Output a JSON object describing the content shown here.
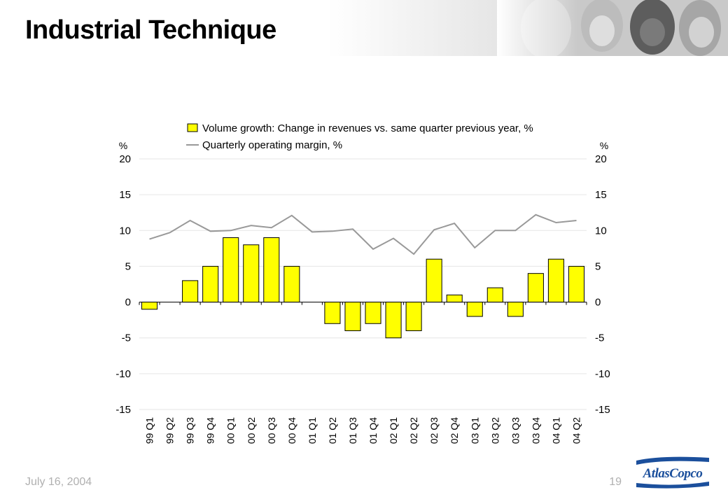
{
  "slide": {
    "title": "Industrial Technique",
    "date": "July 16, 2004",
    "page_number": "19",
    "logo_text": "AtlasCopco"
  },
  "colors": {
    "bar_fill": "#ffff00",
    "bar_stroke": "#000000",
    "line": "#999999",
    "gridline": "#e6e6e6",
    "logo_blue": "#1b4f9c"
  },
  "chart_data": {
    "type": "bar+line",
    "categories": [
      "99 Q1",
      "99 Q2",
      "99 Q3",
      "99 Q4",
      "00 Q1",
      "00 Q2",
      "00 Q3",
      "00 Q4",
      "01 Q1",
      "01 Q2",
      "01 Q3",
      "01 Q4",
      "02 Q1",
      "02 Q2",
      "02 Q3",
      "02 Q4",
      "03 Q1",
      "03 Q2",
      "03 Q3",
      "03 Q4",
      "04 Q1",
      "04 Q2"
    ],
    "series": [
      {
        "name": "Volume growth: Change in revenues vs. same quarter previous year, %",
        "type": "bar",
        "values": [
          -1,
          0,
          3,
          5,
          9,
          8,
          9,
          5,
          0,
          -3,
          -4,
          -3,
          -5,
          -4,
          6,
          1,
          -2,
          2,
          -2,
          4,
          6,
          5
        ]
      },
      {
        "name": "Quarterly operating margin, %",
        "type": "line",
        "values": [
          8.8,
          9.7,
          11.4,
          9.9,
          10.0,
          10.7,
          10.4,
          12.1,
          9.8,
          9.9,
          10.2,
          7.4,
          8.9,
          6.7,
          10.1,
          11.0,
          7.6,
          10.0,
          10.0,
          12.2,
          11.1,
          11.4
        ]
      }
    ],
    "yaxis": {
      "left_label": "%",
      "right_label": "%",
      "ylim": [
        -15,
        20
      ],
      "ticks": [
        "20",
        "15",
        "10",
        "5",
        "0",
        "-5",
        "-10",
        "-15"
      ],
      "tick_values": [
        20,
        15,
        10,
        5,
        0,
        -5,
        -10,
        -15
      ]
    },
    "grid": true,
    "legend_position": "top"
  }
}
